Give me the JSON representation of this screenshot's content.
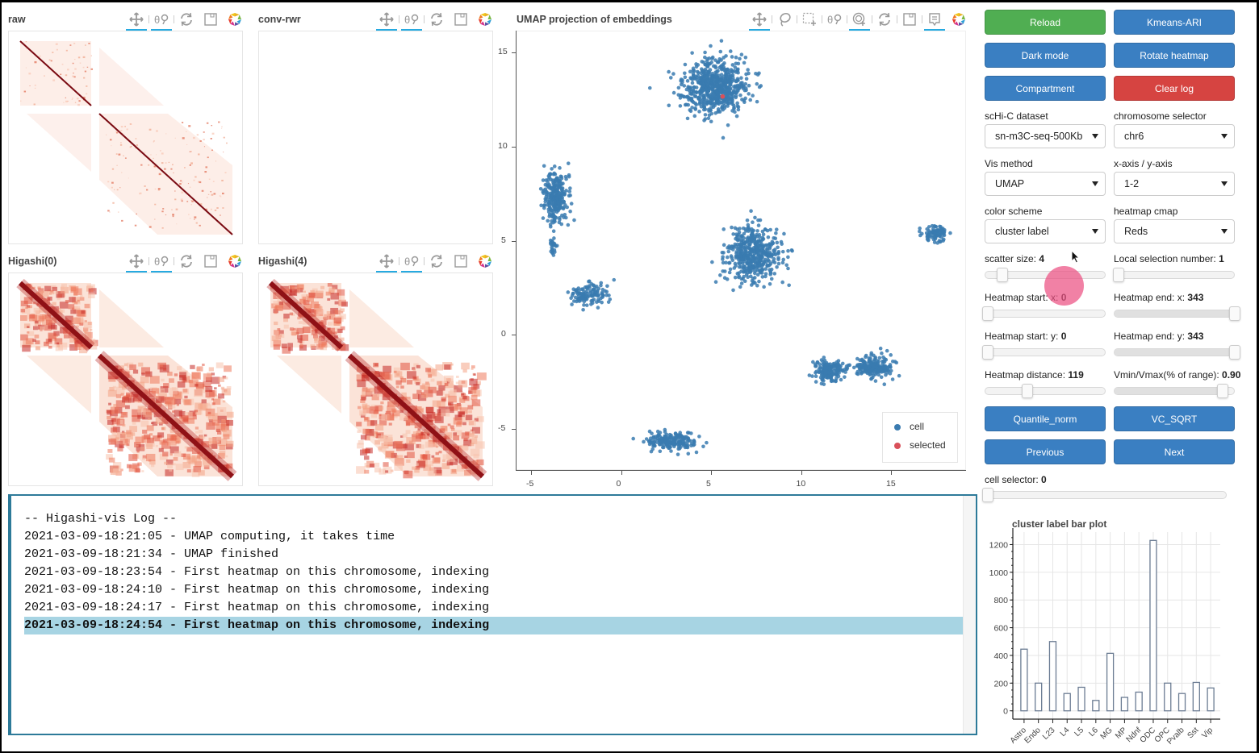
{
  "panels": {
    "raw": {
      "title": "raw"
    },
    "conv_rwr": {
      "title": "conv-rwr"
    },
    "higashi0": {
      "title": "Higashi(0)"
    },
    "higashi4": {
      "title": "Higashi(4)"
    },
    "umap": {
      "title": "UMAP projection of embeddings"
    }
  },
  "toolbar_icons": {
    "heatmap": [
      "pan-icon",
      "wheel-zoom-icon",
      "reset-icon",
      "save-icon",
      "bokeh-logo-icon"
    ],
    "umap": [
      "pan-icon",
      "lasso-select-icon",
      "box-select-icon",
      "wheel-zoom-icon",
      "tap-icon",
      "reset-icon",
      "save-icon",
      "hover-icon",
      "bokeh-logo-icon"
    ]
  },
  "umap_plot": {
    "x_ticks": [
      "-5",
      "0",
      "5",
      "10",
      "15"
    ],
    "y_ticks": [
      "15",
      "10",
      "5",
      "0",
      "-5"
    ],
    "legend": [
      {
        "label": "cell",
        "color": "#3a7bb0"
      },
      {
        "label": "selected",
        "color": "#d9505a"
      }
    ]
  },
  "controls": {
    "buttons": {
      "reload": "Reload",
      "kmeans_ari": "Kmeans-ARI",
      "dark_mode": "Dark mode",
      "rotate_heatmap": "Rotate heatmap",
      "compartment": "Compartment",
      "clear_log": "Clear log",
      "quantile_norm": "Quantile_norm",
      "vc_sqrt": "VC_SQRT",
      "previous": "Previous",
      "next": "Next"
    },
    "selects": {
      "dataset": {
        "label": "scHi-C dataset",
        "value": "sn-m3C-seq-500Kb"
      },
      "chromosome": {
        "label": "chromosome selector",
        "value": "chr6"
      },
      "vis_method": {
        "label": "Vis method",
        "value": "UMAP"
      },
      "axis": {
        "label": "x-axis / y-axis",
        "value": "1-2"
      },
      "color_scheme": {
        "label": "color scheme",
        "value": "cluster label"
      },
      "cmap": {
        "label": "heatmap cmap",
        "value": "Reds"
      }
    },
    "sliders": {
      "scatter_size": {
        "label": "scatter size: ",
        "value": "4"
      },
      "local_sel": {
        "label": "Local selection number: ",
        "value": "1"
      },
      "hm_start_x": {
        "label": "Heatmap start: x: ",
        "value": "0"
      },
      "hm_end_x": {
        "label": "Heatmap end: x: ",
        "value": "343"
      },
      "hm_start_y": {
        "label": "Heatmap start: y: ",
        "value": "0"
      },
      "hm_end_y": {
        "label": "Heatmap end: y: ",
        "value": "343"
      },
      "hm_distance": {
        "label": "Heatmap distance: ",
        "value": "119"
      },
      "vminmax": {
        "label": "Vmin/Vmax(% of range): ",
        "value": "0.90"
      },
      "cell_selector": {
        "label": "cell selector: ",
        "value": "0"
      }
    }
  },
  "log": {
    "lines": [
      "-- Higashi-vis Log --",
      "2021-03-09-18:21:05 - UMAP computing, it takes time",
      "2021-03-09-18:21:34 - UMAP finished",
      "2021-03-09-18:23:54 - First heatmap on this chromosome, indexing",
      "2021-03-09-18:24:10 - First heatmap on this chromosome, indexing",
      "2021-03-09-18:24:17 - First heatmap on this chromosome, indexing",
      "2021-03-09-18:24:54 - First heatmap on this chromosome, indexing"
    ],
    "selected_index": 6
  },
  "chart_data": {
    "type": "bar",
    "title": "cluster label bar plot",
    "categories": [
      "Astro",
      "Endo",
      "L23",
      "L4",
      "L5",
      "L6",
      "MG",
      "MP",
      "Ndnf",
      "ODC",
      "OPC",
      "Pvalb",
      "Sst",
      "Vip"
    ],
    "values": [
      445,
      200,
      500,
      125,
      170,
      75,
      415,
      97,
      135,
      1230,
      200,
      125,
      205,
      165
    ],
    "y_ticks": [
      "1200",
      "1000",
      "800",
      "600",
      "400",
      "200",
      "0"
    ],
    "ylim": [
      -60,
      1290
    ],
    "xlabel": "",
    "ylabel": "",
    "grid": true
  }
}
